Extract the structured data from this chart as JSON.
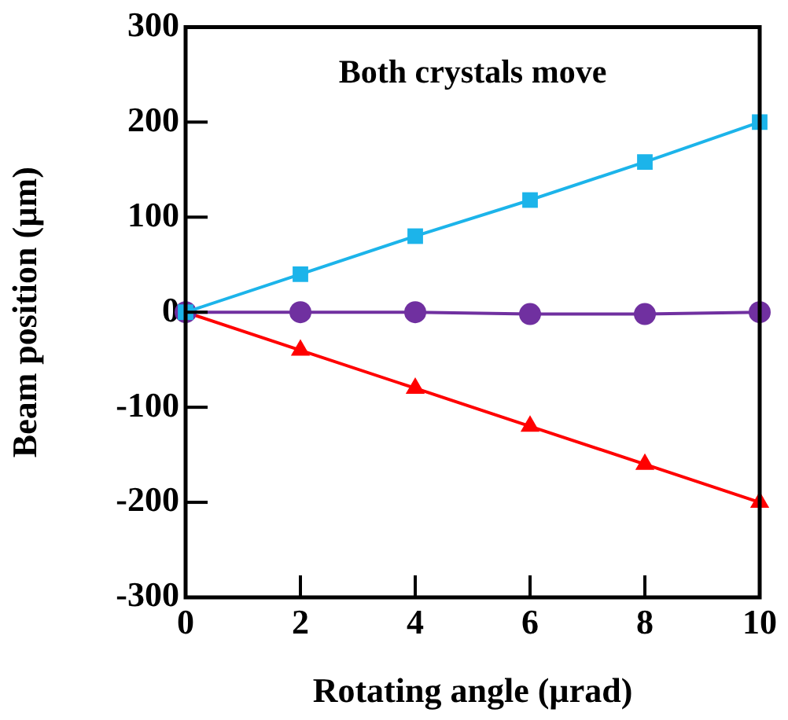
{
  "chart_data": {
    "type": "line",
    "xlabel": "Rotating angle (µrad)",
    "ylabel": "Beam position (µm)",
    "annotations": [
      "Both crystals move"
    ],
    "x": [
      0,
      2,
      4,
      6,
      8,
      10
    ],
    "series": [
      {
        "color": "#1cb4ea",
        "marker": "square",
        "values": [
          0,
          40,
          80,
          118,
          158,
          200
        ]
      },
      {
        "color": "#7030a0",
        "marker": "circle",
        "values": [
          0,
          0,
          0,
          -2,
          -2,
          0
        ]
      },
      {
        "color": "#ff0000",
        "marker": "triangle",
        "values": [
          0,
          -40,
          -80,
          -120,
          -160,
          -200
        ]
      }
    ],
    "xlim": [
      0,
      10
    ],
    "xticks": [
      0,
      2,
      4,
      6,
      8,
      10
    ],
    "ylim": [
      -300,
      300
    ],
    "yticks": [
      -300,
      -200,
      -100,
      0,
      100,
      200,
      300
    ],
    "grid": false,
    "legend": false,
    "line_style": "solid"
  }
}
